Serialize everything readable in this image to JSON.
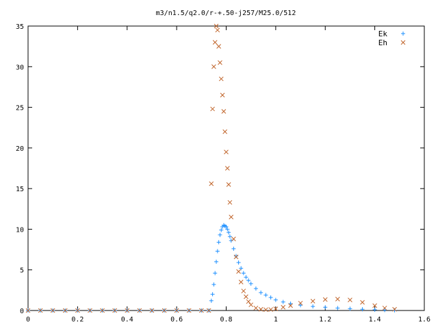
{
  "chart_data": {
    "type": "scatter",
    "title": "m3/n1.5/q2.0/r-+.50-j257/M25.0/512",
    "xlabel": "",
    "ylabel": "",
    "xlim": [
      0,
      1.6
    ],
    "ylim": [
      0,
      35
    ],
    "xticks": [
      0,
      0.2,
      0.4,
      0.6,
      0.8,
      1,
      1.2,
      1.4,
      1.6
    ],
    "xtick_labels": [
      "0",
      "0.2",
      "0.4",
      "0.6",
      "0.8",
      "1",
      "1.2",
      "1.4",
      "1.6"
    ],
    "yticks": [
      0,
      5,
      10,
      15,
      20,
      25,
      30,
      35
    ],
    "ytick_labels": [
      "0",
      "5",
      "10",
      "15",
      "20",
      "25",
      "30",
      "35"
    ],
    "grid": false,
    "legend_position": "top-right",
    "series": [
      {
        "name": "Ek",
        "marker": "+",
        "color": "#1e90ff",
        "x": [
          0.0,
          0.05,
          0.1,
          0.15,
          0.2,
          0.25,
          0.3,
          0.35,
          0.4,
          0.45,
          0.5,
          0.55,
          0.6,
          0.65,
          0.7,
          0.73,
          0.74,
          0.745,
          0.75,
          0.755,
          0.76,
          0.765,
          0.77,
          0.775,
          0.78,
          0.785,
          0.79,
          0.795,
          0.8,
          0.805,
          0.81,
          0.815,
          0.82,
          0.83,
          0.84,
          0.85,
          0.86,
          0.87,
          0.88,
          0.89,
          0.9,
          0.92,
          0.94,
          0.96,
          0.98,
          1.0,
          1.03,
          1.06,
          1.1,
          1.15,
          1.2,
          1.25,
          1.3,
          1.35,
          1.4,
          1.44,
          1.48
        ],
        "y": [
          0,
          0,
          0,
          0,
          0,
          0,
          0,
          0,
          0,
          0,
          0,
          0,
          0,
          0,
          0,
          0,
          1.2,
          2.0,
          3.2,
          4.6,
          6.0,
          7.3,
          8.4,
          9.3,
          9.9,
          10.3,
          10.5,
          10.4,
          10.3,
          10.0,
          9.6,
          9.1,
          8.6,
          7.6,
          6.7,
          5.9,
          5.2,
          4.6,
          4.1,
          3.7,
          3.3,
          2.7,
          2.2,
          1.9,
          1.6,
          1.3,
          1.05,
          0.85,
          0.65,
          0.5,
          0.4,
          0.3,
          0.22,
          0.15,
          0.09,
          0.05,
          0.02
        ]
      },
      {
        "name": "Eh",
        "marker": "x",
        "color": "#c0642a",
        "x": [
          0.0,
          0.05,
          0.1,
          0.15,
          0.2,
          0.25,
          0.3,
          0.35,
          0.4,
          0.45,
          0.5,
          0.55,
          0.6,
          0.65,
          0.7,
          0.73,
          0.74,
          0.745,
          0.75,
          0.755,
          0.76,
          0.765,
          0.77,
          0.775,
          0.78,
          0.785,
          0.79,
          0.795,
          0.8,
          0.805,
          0.81,
          0.815,
          0.82,
          0.83,
          0.84,
          0.85,
          0.86,
          0.87,
          0.88,
          0.89,
          0.9,
          0.92,
          0.94,
          0.96,
          0.98,
          1.0,
          1.03,
          1.06,
          1.1,
          1.15,
          1.2,
          1.25,
          1.3,
          1.35,
          1.4,
          1.44,
          1.48
        ],
        "y": [
          0,
          0,
          0,
          0,
          0,
          0,
          0,
          0,
          0,
          0,
          0,
          0,
          0,
          0,
          0,
          0,
          15.6,
          24.8,
          30.0,
          33.0,
          35.0,
          34.5,
          32.5,
          30.5,
          28.5,
          26.5,
          24.5,
          22.0,
          19.5,
          17.5,
          15.5,
          13.3,
          11.5,
          8.8,
          6.6,
          4.8,
          3.5,
          2.4,
          1.7,
          1.1,
          0.7,
          0.3,
          0.15,
          0.1,
          0.12,
          0.2,
          0.4,
          0.6,
          0.9,
          1.15,
          1.35,
          1.4,
          1.3,
          1.0,
          0.6,
          0.3,
          0.15
        ]
      }
    ]
  }
}
